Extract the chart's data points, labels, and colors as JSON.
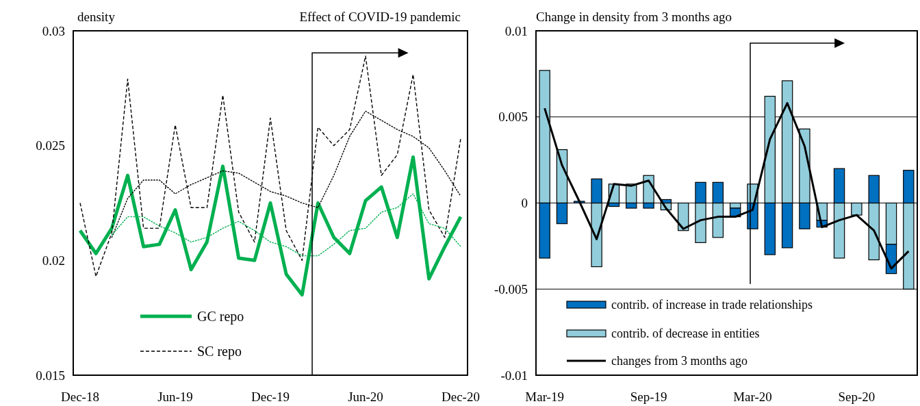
{
  "chart_data": [
    {
      "type": "line",
      "title": "Effect of COVID-19 pandemic",
      "ylabel": "density",
      "categories": [
        "Dec-18",
        null,
        null,
        null,
        null,
        null,
        "Jun-19",
        null,
        null,
        null,
        null,
        null,
        "Dec-19",
        null,
        null,
        null,
        null,
        null,
        "Jun-20",
        null,
        null,
        null,
        null,
        null,
        "Dec-20"
      ],
      "ylim": [
        0.015,
        0.03
      ],
      "yticks": [
        0.015,
        0.02,
        0.025,
        0.03
      ],
      "legend": "bottom left",
      "series": [
        {
          "name": "GC repo",
          "color": "#00b050",
          "line_style": "solid",
          "values": [
            0.0213,
            0.0203,
            0.0214,
            0.0237,
            0.0206,
            0.0207,
            0.0222,
            0.0196,
            0.0208,
            0.0241,
            0.0201,
            0.02,
            0.0225,
            0.0194,
            0.0185,
            0.0225,
            0.021,
            0.0203,
            0.0226,
            0.0232,
            0.021,
            0.0245,
            0.0192,
            0.0206,
            0.0219
          ]
        },
        {
          "name": "SC repo",
          "color": "#000000",
          "line_style": "dashed",
          "values": [
            0.0225,
            0.0193,
            0.0212,
            0.0279,
            0.0214,
            0.0214,
            0.0259,
            0.0223,
            0.0223,
            0.0272,
            0.0221,
            0.0208,
            0.0262,
            0.0213,
            0.02,
            0.0258,
            0.025,
            0.0257,
            0.0289,
            0.0237,
            0.0246,
            0.0281,
            0.0222,
            0.021,
            0.0253
          ]
        },
        {
          "color": "#000000",
          "line_style": "dotted",
          "values": [
            null,
            null,
            0.021,
            0.0227,
            0.0235,
            0.0235,
            0.0229,
            0.0233,
            0.0236,
            0.0239,
            0.0238,
            0.0234,
            0.023,
            0.0228,
            0.0225,
            0.0223,
            0.0237,
            0.0254,
            0.0265,
            0.0261,
            0.0257,
            0.0254,
            0.0249,
            0.0239,
            0.0228
          ]
        },
        {
          "color": "#00b050",
          "line_style": "dotted",
          "values": [
            null,
            null,
            0.0211,
            0.0219,
            0.0219,
            0.0215,
            0.0212,
            0.0208,
            0.021,
            0.0214,
            0.0217,
            0.0213,
            0.0208,
            0.0206,
            0.0202,
            0.0202,
            0.0207,
            0.0213,
            0.0214,
            0.0221,
            0.0223,
            0.0229,
            0.0216,
            0.0214,
            0.0206
          ]
        }
      ]
    },
    {
      "type": "bar",
      "title": "Change in density from 3 months ago",
      "stacked": true,
      "categories": [
        "Mar-19",
        null,
        null,
        null,
        null,
        null,
        "Sep-19",
        null,
        null,
        null,
        null,
        null,
        "Mar-20",
        null,
        null,
        null,
        null,
        null,
        "Sep-20",
        null,
        null,
        null
      ],
      "ylim": [
        -0.01,
        0.01
      ],
      "yticks": [
        -0.01,
        -0.005,
        0,
        0.005,
        0.01
      ],
      "grid": "y",
      "legend": "bottom",
      "series": [
        {
          "name": "contrib. of decrease in entities",
          "color": "#92cddc",
          "values": [
            0.0077,
            0.0031,
            0,
            -0.0037,
            0.0011,
            0.0011,
            0.0016,
            -0.0004,
            -0.0016,
            -0.0023,
            -0.002,
            -0.0003,
            0.0011,
            0.0062,
            0.0071,
            0.0043,
            -0.001,
            -0.0032,
            -0.0007,
            -0.0033,
            -0.0024,
            -0.005
          ]
        },
        {
          "name": "contrib. of increase in trade relationships",
          "color": "#0070c0",
          "values": [
            -0.0032,
            -0.0012,
            0.0001,
            0.0014,
            -0.0002,
            -0.0003,
            -0.0003,
            0.0002,
            0,
            0.0012,
            0.0012,
            -0.0005,
            -0.0015,
            -0.003,
            -0.0026,
            -0.0015,
            -0.0004,
            0.002,
            0,
            0.0016,
            -0.0017,
            0.0019
          ]
        },
        {
          "name": "changes from 3 months ago",
          "type": "line",
          "color": "#000000",
          "line_style": "solid",
          "values": [
            0.0055,
            0.0022,
            0.0001,
            -0.0021,
            0.0011,
            0.001,
            0.0013,
            -0.0003,
            -0.0015,
            -0.001,
            -0.0008,
            -0.0008,
            -0.0004,
            0.0037,
            0.0058,
            0.0033,
            -0.0014,
            -0.001,
            -0.0007,
            -0.0016,
            -0.0038,
            -0.0028
          ]
        }
      ]
    }
  ]
}
